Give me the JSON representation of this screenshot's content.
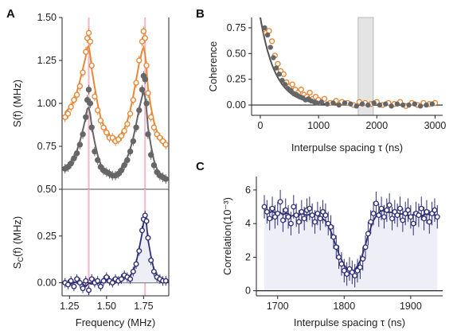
{
  "colors": {
    "orange": "#e8893a",
    "gray": "#666666",
    "navy": "#2e2f78",
    "pink": "#f4b6cb",
    "shade": "#e4e4e4",
    "fill_c": "#eeeef6"
  },
  "chart_data": [
    {
      "panel": "A",
      "type": "scatter",
      "subpanel": "top",
      "xlabel": "",
      "ylabel": "S(f) (MHz)",
      "xlim": [
        1.2,
        1.92
      ],
      "ylim": [
        0.5,
        1.5
      ],
      "xticks": [
        1.25,
        1.5,
        1.75
      ],
      "yticks": [
        "0.50",
        "0.75",
        "1.00",
        "1.25",
        "1.50"
      ],
      "vlines": [
        1.38,
        1.76
      ],
      "series": [
        {
          "color": "orange",
          "style": "open-circle",
          "fit": true,
          "x": [
            1.22,
            1.24,
            1.26,
            1.28,
            1.3,
            1.32,
            1.34,
            1.36,
            1.37,
            1.38,
            1.39,
            1.4,
            1.42,
            1.44,
            1.46,
            1.48,
            1.5,
            1.52,
            1.54,
            1.56,
            1.58,
            1.6,
            1.62,
            1.64,
            1.66,
            1.68,
            1.7,
            1.72,
            1.74,
            1.75,
            1.76,
            1.77,
            1.78,
            1.8,
            1.82,
            1.84,
            1.86,
            1.88,
            1.9
          ],
          "y": [
            0.92,
            0.94,
            0.98,
            1.02,
            1.05,
            1.1,
            1.18,
            1.3,
            1.38,
            1.41,
            1.36,
            1.22,
            1.04,
            0.96,
            0.9,
            0.86,
            0.83,
            0.8,
            0.8,
            0.78,
            0.79,
            0.81,
            0.84,
            0.88,
            0.94,
            1.02,
            1.12,
            1.25,
            1.36,
            1.42,
            1.38,
            1.22,
            1.06,
            0.92,
            0.86,
            0.82,
            0.8,
            0.78,
            0.76
          ]
        },
        {
          "color": "gray",
          "style": "filled-circle",
          "fit": true,
          "x": [
            1.22,
            1.24,
            1.26,
            1.28,
            1.3,
            1.32,
            1.34,
            1.36,
            1.37,
            1.38,
            1.39,
            1.4,
            1.42,
            1.44,
            1.46,
            1.48,
            1.5,
            1.52,
            1.54,
            1.56,
            1.58,
            1.6,
            1.62,
            1.64,
            1.66,
            1.68,
            1.7,
            1.72,
            1.74,
            1.75,
            1.76,
            1.77,
            1.78,
            1.8,
            1.82,
            1.84,
            1.86,
            1.88,
            1.9
          ],
          "y": [
            0.62,
            0.63,
            0.65,
            0.68,
            0.71,
            0.76,
            0.82,
            0.92,
            1.02,
            1.08,
            1.0,
            0.86,
            0.72,
            0.67,
            0.63,
            0.61,
            0.6,
            0.59,
            0.58,
            0.58,
            0.59,
            0.61,
            0.64,
            0.67,
            0.72,
            0.78,
            0.86,
            0.96,
            1.08,
            1.16,
            1.14,
            1.0,
            0.82,
            0.7,
            0.64,
            0.6,
            0.58,
            0.57,
            0.56
          ]
        }
      ]
    },
    {
      "panel": "A",
      "type": "scatter",
      "subpanel": "bottom",
      "xlabel": "Frequency (MHz)",
      "ylabel": "S_C(f) (MHz)",
      "xlim": [
        1.2,
        1.92
      ],
      "ylim": [
        -0.07,
        0.5
      ],
      "xticks": [
        "1.25",
        "1.50",
        "1.75"
      ],
      "yticks": [
        "0.00",
        "0.25"
      ],
      "vlines": [
        1.38,
        1.76
      ],
      "series": [
        {
          "color": "navy",
          "style": "open-circle",
          "fit": true,
          "x": [
            1.22,
            1.24,
            1.26,
            1.28,
            1.3,
            1.32,
            1.34,
            1.36,
            1.38,
            1.4,
            1.42,
            1.44,
            1.46,
            1.48,
            1.5,
            1.52,
            1.54,
            1.56,
            1.58,
            1.6,
            1.62,
            1.64,
            1.66,
            1.68,
            1.7,
            1.72,
            1.74,
            1.75,
            1.76,
            1.77,
            1.78,
            1.8,
            1.82,
            1.84,
            1.86,
            1.88,
            1.9
          ],
          "y": [
            0.0,
            -0.01,
            0.01,
            -0.02,
            0.02,
            0.0,
            -0.03,
            0.01,
            -0.04,
            0.02,
            0.0,
            0.01,
            -0.02,
            0.01,
            0.03,
            0.01,
            0.0,
            0.02,
            0.01,
            0.02,
            0.04,
            0.03,
            0.02,
            0.06,
            0.1,
            0.17,
            0.28,
            0.34,
            0.36,
            0.33,
            0.24,
            0.12,
            0.06,
            0.03,
            0.02,
            0.01,
            0.01
          ]
        }
      ]
    },
    {
      "panel": "B",
      "type": "scatter",
      "xlabel": "Interpulse spacing τ (ns)",
      "ylabel": "Coherence",
      "xlim": [
        -150,
        3130
      ],
      "ylim": [
        -0.1,
        0.85
      ],
      "xticks": [
        "0",
        "1000",
        "2000",
        "3000"
      ],
      "yticks": [
        "0.00",
        "0.25",
        "0.50",
        "0.75"
      ],
      "shaded_band": [
        1680,
        1940
      ],
      "series": [
        {
          "color": "orange",
          "style": "open-circle",
          "x": [
            100,
            150,
            200,
            250,
            300,
            350,
            400,
            450,
            500,
            550,
            600,
            650,
            700,
            750,
            800,
            850,
            900,
            950,
            1000,
            1100,
            1200,
            1300,
            1400,
            1500,
            1600,
            1700,
            1800,
            1900,
            2000,
            2100,
            2200,
            2300,
            2400,
            2500,
            2600,
            2700,
            2800,
            2900,
            3000
          ],
          "y": [
            0.7,
            0.72,
            0.62,
            0.48,
            0.4,
            0.33,
            0.3,
            0.22,
            0.18,
            0.2,
            0.15,
            0.12,
            0.15,
            0.1,
            0.08,
            0.12,
            0.06,
            0.08,
            0.05,
            0.06,
            0.02,
            0.04,
            0.03,
            0.02,
            0.0,
            0.03,
            0.02,
            0.01,
            0.03,
            0.0,
            0.02,
            0.01,
            0.03,
            -0.01,
            0.02,
            0.0,
            0.02,
            0.01,
            0.02
          ]
        },
        {
          "color": "gray",
          "style": "filled-circle",
          "x": [
            75,
            125,
            175,
            225,
            275,
            325,
            375,
            425,
            475,
            525,
            575,
            625,
            675,
            725,
            775,
            825,
            875,
            925,
            975,
            1050,
            1150,
            1250,
            1350,
            1450,
            1550,
            1650,
            1750,
            1850,
            1950,
            2050,
            2150,
            2250,
            2350,
            2450,
            2550,
            2650,
            2750,
            2850,
            2950
          ],
          "y": [
            0.75,
            0.68,
            0.56,
            0.46,
            0.36,
            0.3,
            0.24,
            0.2,
            0.16,
            0.14,
            0.11,
            0.1,
            0.08,
            0.07,
            0.05,
            0.06,
            0.04,
            0.03,
            0.02,
            0.03,
            0.01,
            0.02,
            0.0,
            0.02,
            0.01,
            -0.01,
            0.01,
            0.0,
            0.02,
            0.0,
            0.01,
            -0.01,
            0.01,
            0.0,
            0.0,
            0.01,
            -0.01,
            0.0,
            0.01
          ]
        }
      ]
    },
    {
      "panel": "C",
      "type": "scatter",
      "xlabel": "Interpulse spacing τ (ns)",
      "ylabel": "Correlation",
      "ylabel_unit": "(10⁻³)",
      "xlim": [
        1668,
        1948
      ],
      "ylim": [
        -0.3,
        6.8
      ],
      "xticks": [
        "1700",
        "1800",
        "1900"
      ],
      "yticks": [
        "0",
        "2",
        "4",
        "6"
      ],
      "fill_range": [
        1680,
        1940
      ],
      "series": [
        {
          "color": "navy",
          "style": "open-circle",
          "errorbar": 0.7,
          "fit": true,
          "x": [
            1680,
            1684,
            1688,
            1692,
            1696,
            1700,
            1704,
            1708,
            1712,
            1716,
            1720,
            1724,
            1728,
            1732,
            1736,
            1740,
            1744,
            1748,
            1752,
            1756,
            1760,
            1764,
            1768,
            1772,
            1776,
            1780,
            1784,
            1788,
            1792,
            1796,
            1800,
            1804,
            1808,
            1812,
            1816,
            1820,
            1824,
            1828,
            1832,
            1836,
            1840,
            1844,
            1848,
            1852,
            1856,
            1860,
            1864,
            1868,
            1872,
            1876,
            1880,
            1884,
            1888,
            1892,
            1896,
            1900,
            1904,
            1908,
            1912,
            1916,
            1920,
            1924,
            1928,
            1932,
            1936,
            1940
          ],
          "y": [
            5.0,
            4.7,
            4.3,
            4.9,
            4.4,
            4.6,
            5.3,
            4.2,
            4.8,
            4.4,
            4.0,
            5.0,
            4.5,
            4.1,
            4.7,
            4.3,
            4.8,
            4.9,
            4.5,
            4.1,
            4.6,
            4.3,
            4.7,
            4.5,
            4.0,
            3.8,
            3.2,
            2.6,
            2.0,
            1.6,
            1.2,
            1.0,
            1.3,
            1.1,
            0.9,
            1.2,
            1.4,
            1.9,
            2.6,
            3.4,
            4.1,
            4.6,
            5.2,
            4.5,
            4.9,
            4.4,
            4.8,
            5.1,
            4.3,
            4.7,
            4.5,
            4.9,
            4.2,
            4.6,
            4.8,
            4.4,
            4.0,
            4.6,
            4.5,
            4.9,
            4.3,
            4.7,
            4.1,
            4.6,
            4.8,
            4.4
          ]
        }
      ]
    }
  ]
}
